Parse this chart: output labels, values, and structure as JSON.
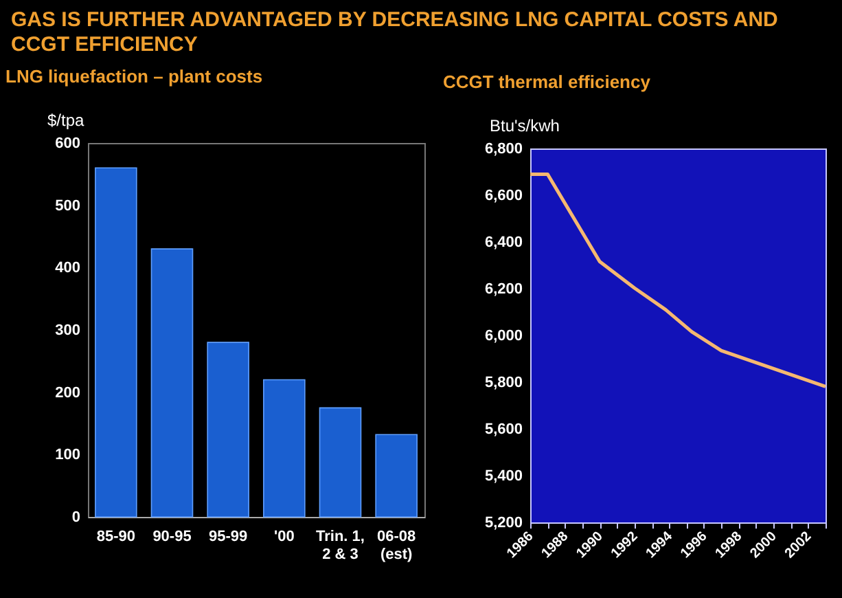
{
  "chart_data": [
    {
      "type": "bar",
      "title": "GAS IS FURTHER ADVANTAGED BY DECREASING LNG CAPITAL COSTS AND CCGT EFFICIENCY",
      "subtitle": "LNG liquefaction – plant costs",
      "ylabel": "$/tpa",
      "categories": [
        "85-90",
        "90-95",
        "95-99",
        "'00",
        "Trin. 1, 2 & 3",
        "06-08 (est)"
      ],
      "values": [
        560,
        430,
        280,
        220,
        175,
        132
      ],
      "color": "#1a5fd0",
      "ylim": [
        0,
        600
      ],
      "yticks": [
        0,
        100,
        200,
        300,
        400,
        500,
        600
      ]
    },
    {
      "type": "line",
      "title": "CCGT thermal efficiency",
      "ylabel": "Btu's/kwh",
      "x": [
        1986,
        1987,
        1990,
        1992,
        1993.8,
        1995.3,
        1997,
        2003
      ],
      "values": [
        6690,
        6690,
        6316,
        6203,
        6110,
        6016,
        5935,
        5781
      ],
      "color": "#f5b870",
      "xlim": [
        1986,
        2003
      ],
      "xticks": [
        1986,
        {
          "value": 1987,
          "label": null
        },
        1988,
        {
          "value": 1989,
          "label": null
        },
        1990,
        {
          "value": 1991,
          "label": null
        },
        1992,
        {
          "value": 1993,
          "label": null
        },
        1994,
        {
          "value": 1995,
          "label": null
        },
        1996,
        {
          "value": 1997,
          "label": null
        },
        1998,
        {
          "value": 1999,
          "label": null
        },
        2000,
        {
          "value": 2001,
          "label": null
        },
        2002,
        {
          "value": 2003,
          "label": null
        }
      ],
      "ylim": [
        5200,
        6800
      ],
      "yticks": [
        {
          "value": 5200,
          "label": "5,200"
        },
        {
          "value": 5400,
          "label": "5,400"
        },
        {
          "value": 5600,
          "label": "5,600"
        },
        {
          "value": 5800,
          "label": "5,800"
        },
        {
          "value": 6000,
          "label": "6,000"
        },
        {
          "value": 6200,
          "label": "6,200"
        },
        {
          "value": 6400,
          "label": "6,400"
        },
        {
          "value": 6600,
          "label": "6,600"
        },
        {
          "value": 6800,
          "label": "6,800"
        }
      ]
    }
  ]
}
